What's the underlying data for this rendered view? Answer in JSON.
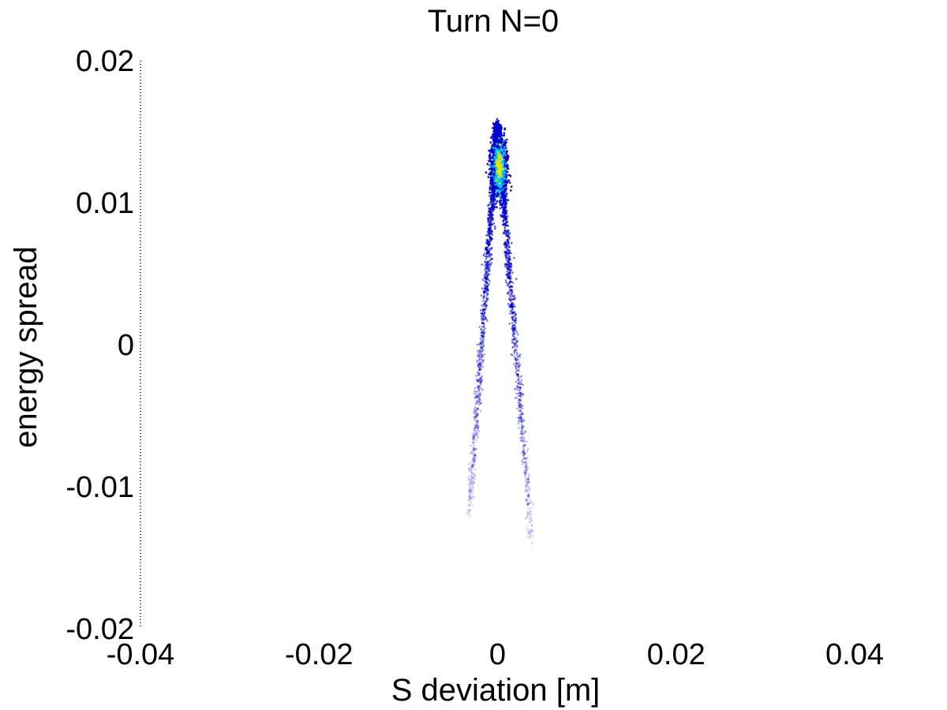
{
  "chart_data": {
    "type": "heatmap",
    "title": "Turn N=0",
    "xlabel": "S deviation [m]",
    "ylabel": "energy spread",
    "xlim": [
      -0.04,
      0.04
    ],
    "ylim": [
      -0.02,
      0.02
    ],
    "xticks": [
      -0.04,
      -0.02,
      0,
      0.02,
      0.04
    ],
    "yticks": [
      -0.02,
      -0.01,
      0,
      0.01,
      0.02
    ],
    "xtick_labels": [
      "-0.04",
      "-0.02",
      "0",
      "0.02",
      "0.04"
    ],
    "ytick_labels": [
      "-0.02",
      "-0.01",
      "0",
      "0.01",
      "0.02"
    ],
    "grid": false,
    "colormap": "jet",
    "distribution": {
      "description_shape": "inverted-V",
      "apex": [
        0.0,
        0.0152
      ],
      "left_arm_end": [
        -0.0032,
        -0.012
      ],
      "right_arm_end": [
        0.0038,
        -0.0138
      ],
      "peak_density_point": [
        0.0002,
        0.0125
      ]
    },
    "colors": {
      "low": "#0000cc",
      "mid": "#00c8ff",
      "high": "#e6e600",
      "axis": "#000000"
    }
  }
}
